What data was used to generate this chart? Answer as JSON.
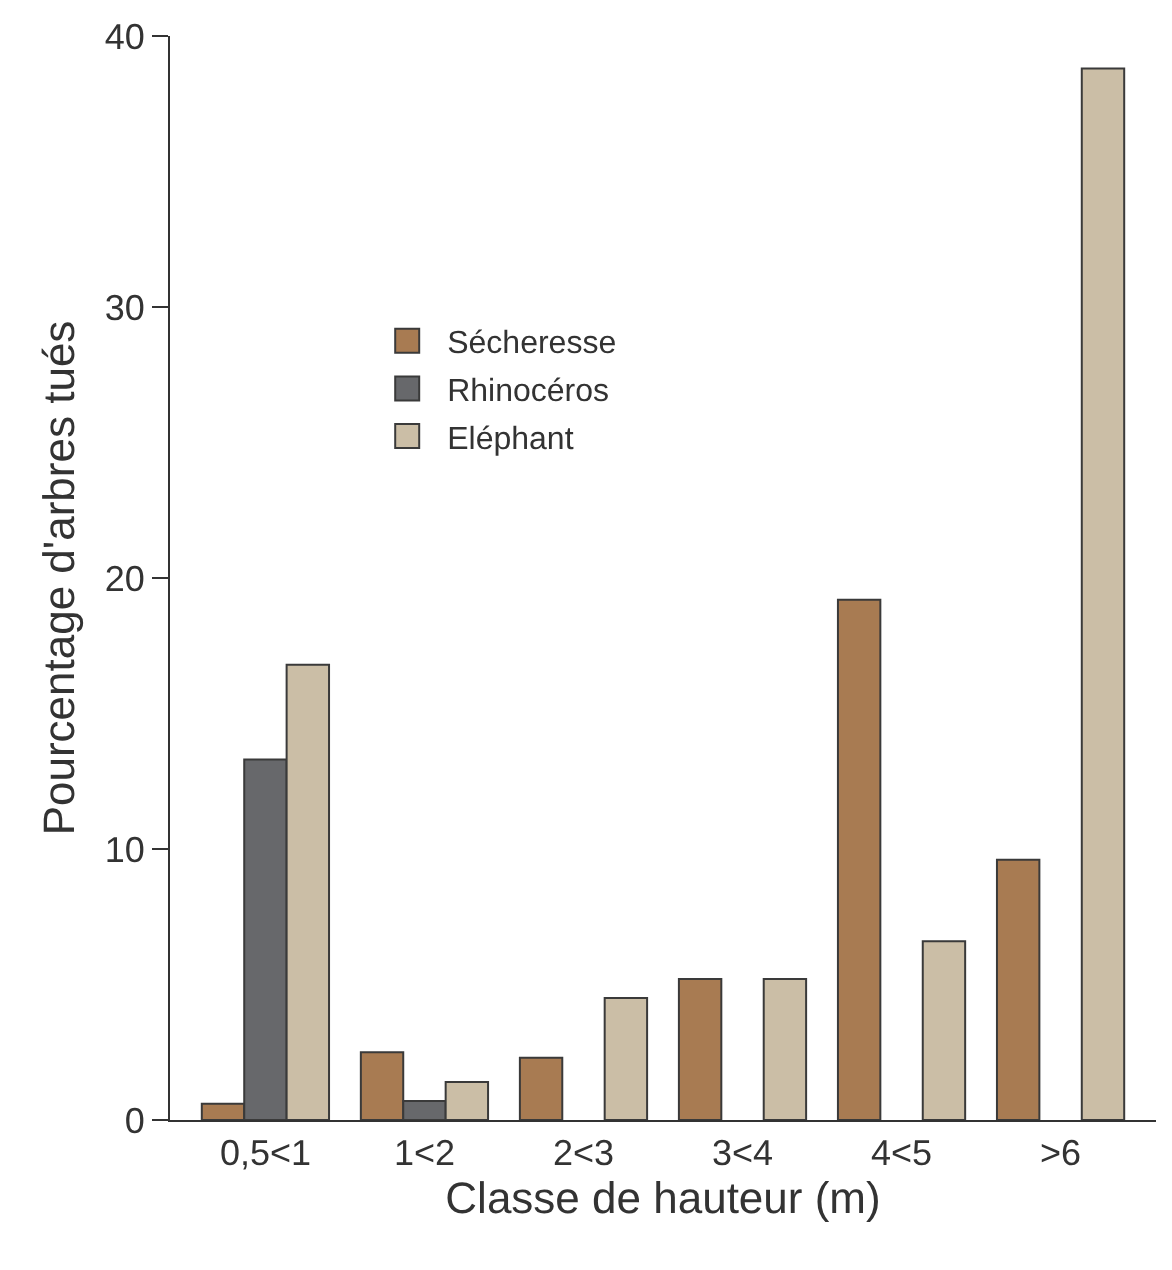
{
  "chart_data": {
    "type": "bar",
    "xlabel": "Classe de hauteur (m)",
    "ylabel": "Pourcentage d'arbres tués",
    "categories": [
      "0,5<1",
      "1<2",
      "2<3",
      "3<4",
      "4<5",
      ">6"
    ],
    "series": [
      {
        "name": "Sécheresse",
        "color": "#a87b52",
        "values": [
          0.6,
          2.5,
          2.3,
          5.2,
          19.2,
          9.6
        ]
      },
      {
        "name": "Rhinocéros",
        "color": "#67686b",
        "values": [
          13.3,
          0.7,
          null,
          null,
          null,
          null
        ]
      },
      {
        "name": "Eléphant",
        "color": "#cbbea6",
        "values": [
          16.8,
          1.4,
          4.5,
          5.2,
          6.6,
          38.8
        ]
      }
    ],
    "ylim": [
      0,
      40
    ],
    "yticks": [
      0,
      10,
      20,
      30,
      40
    ],
    "legend": "top left"
  }
}
